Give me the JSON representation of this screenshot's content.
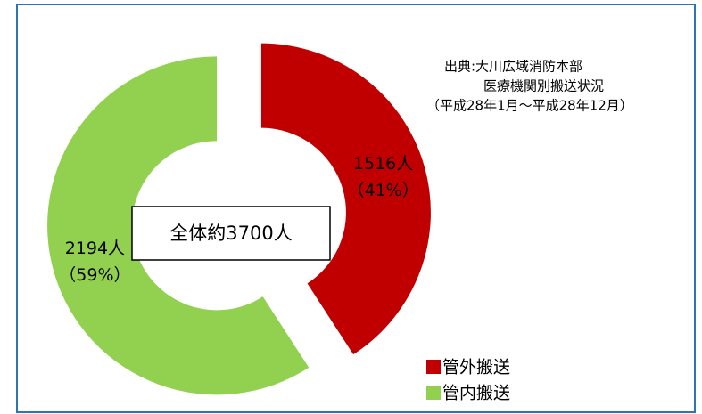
{
  "chart_data": {
    "type": "donut",
    "categories": [
      "管外搬送",
      "管内搬送"
    ],
    "values": [
      1516,
      2194
    ],
    "value_labels": [
      [
        "1516人",
        "（41%）"
      ],
      [
        "2194人",
        "（59%）"
      ]
    ],
    "colors": [
      "#c00000",
      "#92d050"
    ],
    "center_label": "全体約3700人",
    "source": [
      "出典:大川広域消防本部",
      "医療機関別搬送状況",
      "（平成28年1月～平成28年12月）"
    ],
    "legend": "bottom-right"
  }
}
